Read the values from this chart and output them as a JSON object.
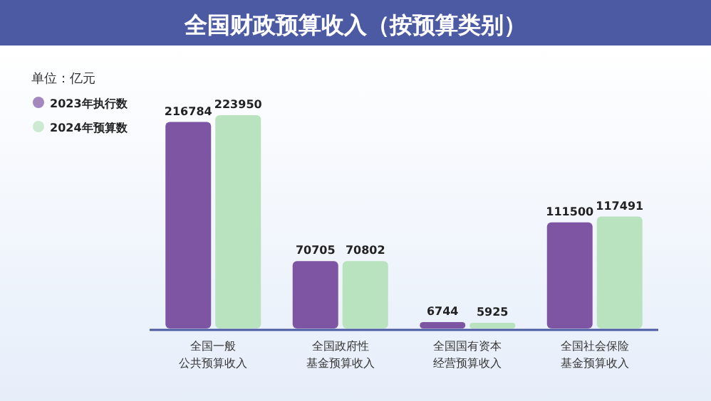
{
  "chart_data": {
    "type": "bar",
    "title": "全国财政预算收入（按预算类别）",
    "annotations": [
      "单位：亿元"
    ],
    "categories": [
      "全国一般公共预算收入",
      "全国政府性基金预算收入",
      "全国国有资本经营预算收入",
      "全国社会保险基金预算收入"
    ],
    "series": [
      {
        "name": "2023年执行数",
        "color": "#7e55a3",
        "values": [
          216784,
          70705,
          6744,
          111500
        ]
      },
      {
        "name": "2024年预算数",
        "color": "#b9e2bf",
        "values": [
          223950,
          70802,
          5925,
          117491
        ]
      }
    ],
    "data_labels": true,
    "legend": "top left",
    "grid": false
  }
}
